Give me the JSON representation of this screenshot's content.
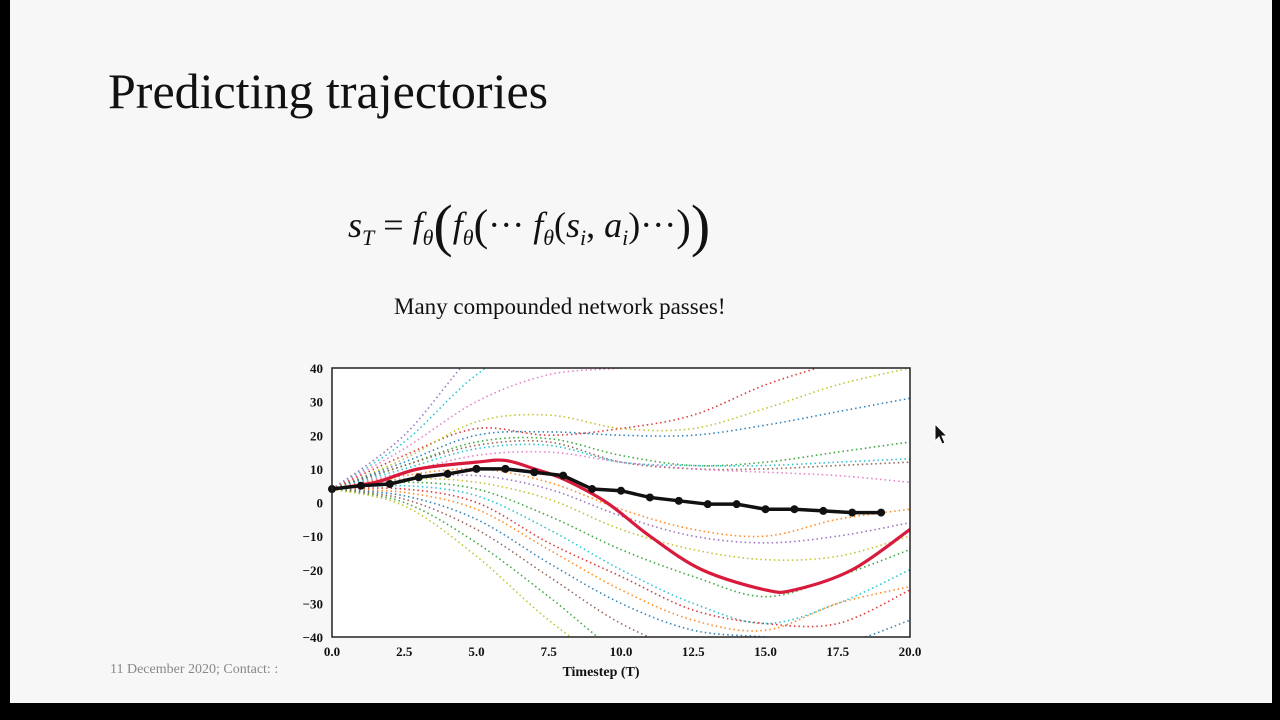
{
  "slide": {
    "title": "Predicting trajectories",
    "formula": {
      "s": "s",
      "T": "T",
      "eq": "=",
      "f": "f",
      "theta": "θ",
      "dots": "···",
      "i": "i",
      "a": "a",
      "comma": ","
    },
    "subtitle": "Many compounded network passes!",
    "footer": "11 December 2020; Contact: :"
  },
  "chart_data": {
    "type": "line",
    "xlabel": "Timestep (T)",
    "ylabel": "",
    "xlim": [
      0,
      20
    ],
    "ylim": [
      -40,
      40
    ],
    "xticks": [
      "0.0",
      "2.5",
      "5.0",
      "7.5",
      "10.0",
      "12.5",
      "15.0",
      "17.5",
      "20.0"
    ],
    "yticks": [
      "40",
      "30",
      "20",
      "10",
      "0",
      "−10",
      "−20",
      "−30",
      "−40"
    ],
    "grid": false,
    "observed": {
      "color": "#111111",
      "x": [
        0,
        1,
        2,
        3,
        4,
        5,
        6,
        7,
        8,
        9,
        10,
        11,
        12,
        13,
        14,
        15,
        16,
        17,
        18,
        19
      ],
      "y": [
        4,
        5,
        5.5,
        7.5,
        8.5,
        10,
        10,
        9,
        8,
        4,
        3.5,
        1.5,
        0.5,
        -0.5,
        -0.5,
        -2,
        -2,
        -2.5,
        -3,
        -3
      ]
    },
    "predicted": {
      "color": "#d81b3c",
      "x": [
        0,
        1.5,
        3,
        5,
        6,
        7,
        8,
        9.5,
        11,
        12.8,
        15,
        16,
        18,
        20
      ],
      "y": [
        4,
        6,
        10,
        12,
        12.5,
        10,
        7,
        0,
        -10,
        -20,
        -26,
        -26,
        -20,
        -8
      ]
    },
    "samples_x": [
      0,
      2.5,
      5,
      7.5,
      10,
      12.5,
      15,
      17.5,
      20
    ],
    "samples": [
      {
        "color": "#9467bd",
        "y": [
          4,
          20,
          45,
          60,
          60,
          60,
          60,
          60,
          60
        ]
      },
      {
        "color": "#17becf",
        "y": [
          4,
          18,
          38,
          50,
          55,
          60,
          60,
          60,
          60
        ]
      },
      {
        "color": "#e377c2",
        "y": [
          4,
          16,
          30,
          38,
          40,
          42,
          45,
          48,
          50
        ]
      },
      {
        "color": "#d62728",
        "y": [
          4,
          14,
          22,
          20,
          22,
          26,
          35,
          42,
          50
        ]
      },
      {
        "color": "#bcbd22",
        "y": [
          4,
          13,
          24,
          26,
          22,
          22,
          28,
          35,
          40
        ]
      },
      {
        "color": "#1f77b4",
        "y": [
          4,
          12,
          20,
          21,
          20,
          20,
          23,
          27,
          31
        ]
      },
      {
        "color": "#2ca02c",
        "y": [
          4,
          11,
          18,
          19,
          14,
          11,
          12,
          15,
          18
        ]
      },
      {
        "color": "#8c564b",
        "y": [
          4,
          11,
          17,
          18,
          12,
          10,
          10,
          11,
          12
        ]
      },
      {
        "color": "#17becf",
        "y": [
          4,
          10,
          16,
          17,
          12,
          11,
          11,
          12,
          13
        ]
      },
      {
        "color": "#e377c2",
        "y": [
          4,
          9,
          14,
          15,
          12,
          10,
          9,
          8,
          6
        ]
      },
      {
        "color": "#ff7f0e",
        "y": [
          4,
          8,
          10,
          6,
          -2,
          -8,
          -10,
          -5,
          -2
        ]
      },
      {
        "color": "#9467bd",
        "y": [
          4,
          7,
          8,
          4,
          -4,
          -10,
          -12,
          -10,
          -6
        ]
      },
      {
        "color": "#bcbd22",
        "y": [
          4,
          7,
          6,
          1,
          -8,
          -14,
          -17,
          -16,
          -10
        ]
      },
      {
        "color": "#2ca02c",
        "y": [
          4,
          6,
          4,
          -4,
          -14,
          -22,
          -28,
          -22,
          -14
        ]
      },
      {
        "color": "#17becf",
        "y": [
          4,
          5,
          2,
          -8,
          -20,
          -30,
          -36,
          -30,
          -20
        ]
      },
      {
        "color": "#d62728",
        "y": [
          4,
          4,
          0,
          -12,
          -22,
          -32,
          -36,
          -36,
          -26
        ]
      },
      {
        "color": "#ff7f0e",
        "y": [
          4,
          3,
          -2,
          -14,
          -26,
          -35,
          -38,
          -30,
          -25
        ]
      },
      {
        "color": "#1f77b4",
        "y": [
          4,
          2,
          -5,
          -18,
          -30,
          -38,
          -40,
          -42,
          -35
        ]
      },
      {
        "color": "#8c564b",
        "y": [
          4,
          1,
          -8,
          -22,
          -36,
          -45,
          -50,
          -45,
          -40
        ]
      },
      {
        "color": "#2ca02c",
        "y": [
          4,
          0,
          -12,
          -28,
          -45,
          -55,
          -55,
          -50,
          -45
        ]
      },
      {
        "color": "#bcbd22",
        "y": [
          4,
          -1,
          -16,
          -35,
          -50,
          -60,
          -60,
          -60,
          -60
        ]
      }
    ]
  },
  "cursor_icon": "arrow-pointer"
}
